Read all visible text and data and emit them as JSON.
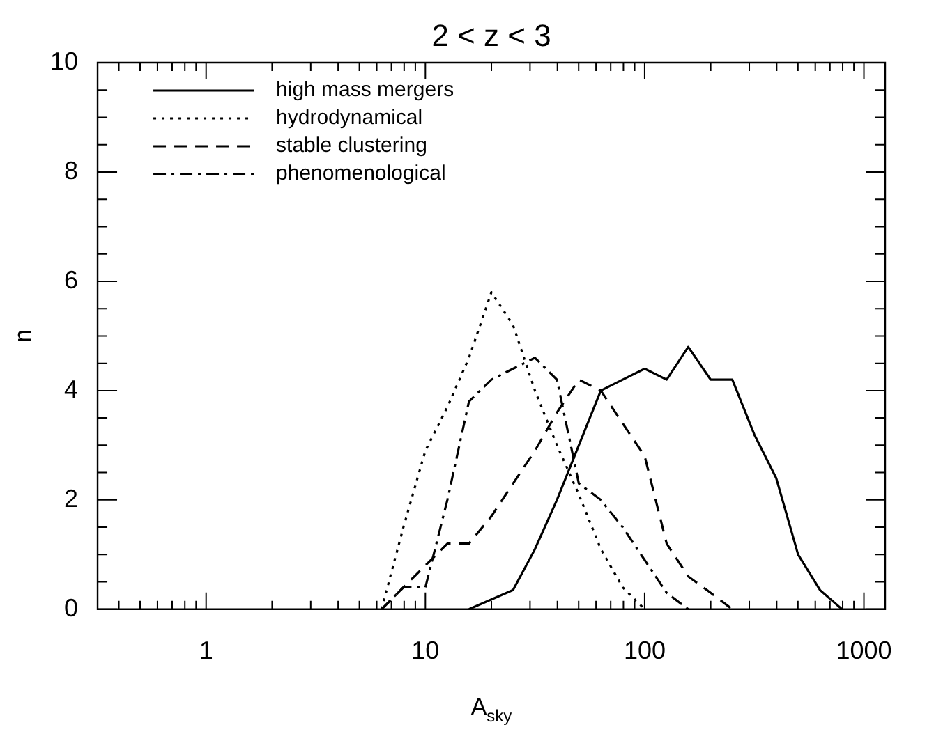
{
  "chart_data": {
    "type": "line",
    "title": "2 < z < 3",
    "xlabel": "A$_{sky}$",
    "ylabel": "n",
    "log": "x",
    "legend": "top left",
    "grid": false,
    "marker": "none",
    "xlim": [
      0.32,
      1250
    ],
    "xticks": [
      {
        "value": 0.4,
        "label": null
      },
      {
        "value": 0.5,
        "label": null
      },
      {
        "value": 0.6,
        "label": null
      },
      {
        "value": 0.7,
        "label": null
      },
      {
        "value": 0.8,
        "label": null
      },
      {
        "value": 0.9,
        "label": null
      },
      1,
      {
        "value": 2,
        "label": null
      },
      {
        "value": 3,
        "label": null
      },
      {
        "value": 4,
        "label": null
      },
      {
        "value": 5,
        "label": null
      },
      {
        "value": 6,
        "label": null
      },
      {
        "value": 7,
        "label": null
      },
      {
        "value": 8,
        "label": null
      },
      {
        "value": 9,
        "label": null
      },
      10,
      {
        "value": 20,
        "label": null
      },
      {
        "value": 30,
        "label": null
      },
      {
        "value": 40,
        "label": null
      },
      {
        "value": 50,
        "label": null
      },
      {
        "value": 60,
        "label": null
      },
      {
        "value": 70,
        "label": null
      },
      {
        "value": 80,
        "label": null
      },
      {
        "value": 90,
        "label": null
      },
      100,
      {
        "value": 200,
        "label": null
      },
      {
        "value": 300,
        "label": null
      },
      {
        "value": 400,
        "label": null
      },
      {
        "value": 500,
        "label": null
      },
      {
        "value": 600,
        "label": null
      },
      {
        "value": 700,
        "label": null
      },
      {
        "value": 800,
        "label": null
      },
      {
        "value": 900,
        "label": null
      },
      1000
    ],
    "ylim": [
      0,
      10
    ],
    "yticks": [
      0,
      {
        "value": 0.5,
        "label": null
      },
      {
        "value": 1,
        "label": null
      },
      {
        "value": 1.5,
        "label": null
      },
      2,
      {
        "value": 2.5,
        "label": null
      },
      {
        "value": 3,
        "label": null
      },
      {
        "value": 3.5,
        "label": null
      },
      4,
      {
        "value": 4.5,
        "label": null
      },
      {
        "value": 5,
        "label": null
      },
      {
        "value": 5.5,
        "label": null
      },
      6,
      {
        "value": 6.5,
        "label": null
      },
      {
        "value": 7,
        "label": null
      },
      {
        "value": 7.5,
        "label": null
      },
      8,
      {
        "value": 8.5,
        "label": null
      },
      {
        "value": 9,
        "label": null
      },
      {
        "value": 9.5,
        "label": null
      },
      10
    ],
    "series": [
      {
        "name": "high mass mergers",
        "color": "#000000",
        "line_style": "solid",
        "x": [
          15.8,
          25.1,
          31.6,
          39.8,
          50.1,
          63.1,
          79.4,
          100,
          126,
          158,
          200,
          251,
          316,
          398,
          501,
          631,
          794
        ],
        "values": [
          0,
          0.35,
          1.1,
          2.0,
          3.0,
          4.0,
          4.2,
          4.4,
          4.2,
          4.8,
          4.2,
          4.2,
          3.2,
          2.4,
          1.0,
          0.35,
          0
        ]
      },
      {
        "name": "hydrodynamical",
        "color": "#000000",
        "line_style": "dotted",
        "x": [
          6.31,
          7.94,
          10,
          12.6,
          15.8,
          20,
          25.1,
          31.6,
          39.8,
          50.1,
          63.1,
          79.4,
          100
        ],
        "values": [
          0,
          1.5,
          2.9,
          3.7,
          4.6,
          5.8,
          5.2,
          4.0,
          3.0,
          2.1,
          1.1,
          0.4,
          0
        ]
      },
      {
        "name": "stable clustering",
        "color": "#000000",
        "line_style": "dashed",
        "x": [
          6.31,
          7.94,
          10,
          12.6,
          15.8,
          20,
          25.1,
          31.6,
          39.8,
          50.1,
          63.1,
          79.4,
          100,
          126,
          158,
          200,
          251
        ],
        "values": [
          0,
          0.4,
          0.8,
          1.2,
          1.2,
          1.7,
          2.3,
          2.9,
          3.6,
          4.2,
          4.0,
          3.4,
          2.8,
          1.2,
          0.6,
          0.3,
          0
        ]
      },
      {
        "name": "phenomenological",
        "color": "#000000",
        "line_style": "dashdot",
        "x": [
          6.31,
          7.94,
          10,
          12.6,
          15.8,
          20,
          25.1,
          31.6,
          39.8,
          50.1,
          63.1,
          79.4,
          100,
          126,
          158
        ],
        "values": [
          0,
          0.4,
          0.4,
          2.0,
          3.8,
          4.2,
          4.4,
          4.6,
          4.2,
          2.3,
          2.0,
          1.5,
          0.9,
          0.3,
          0
        ]
      }
    ]
  }
}
